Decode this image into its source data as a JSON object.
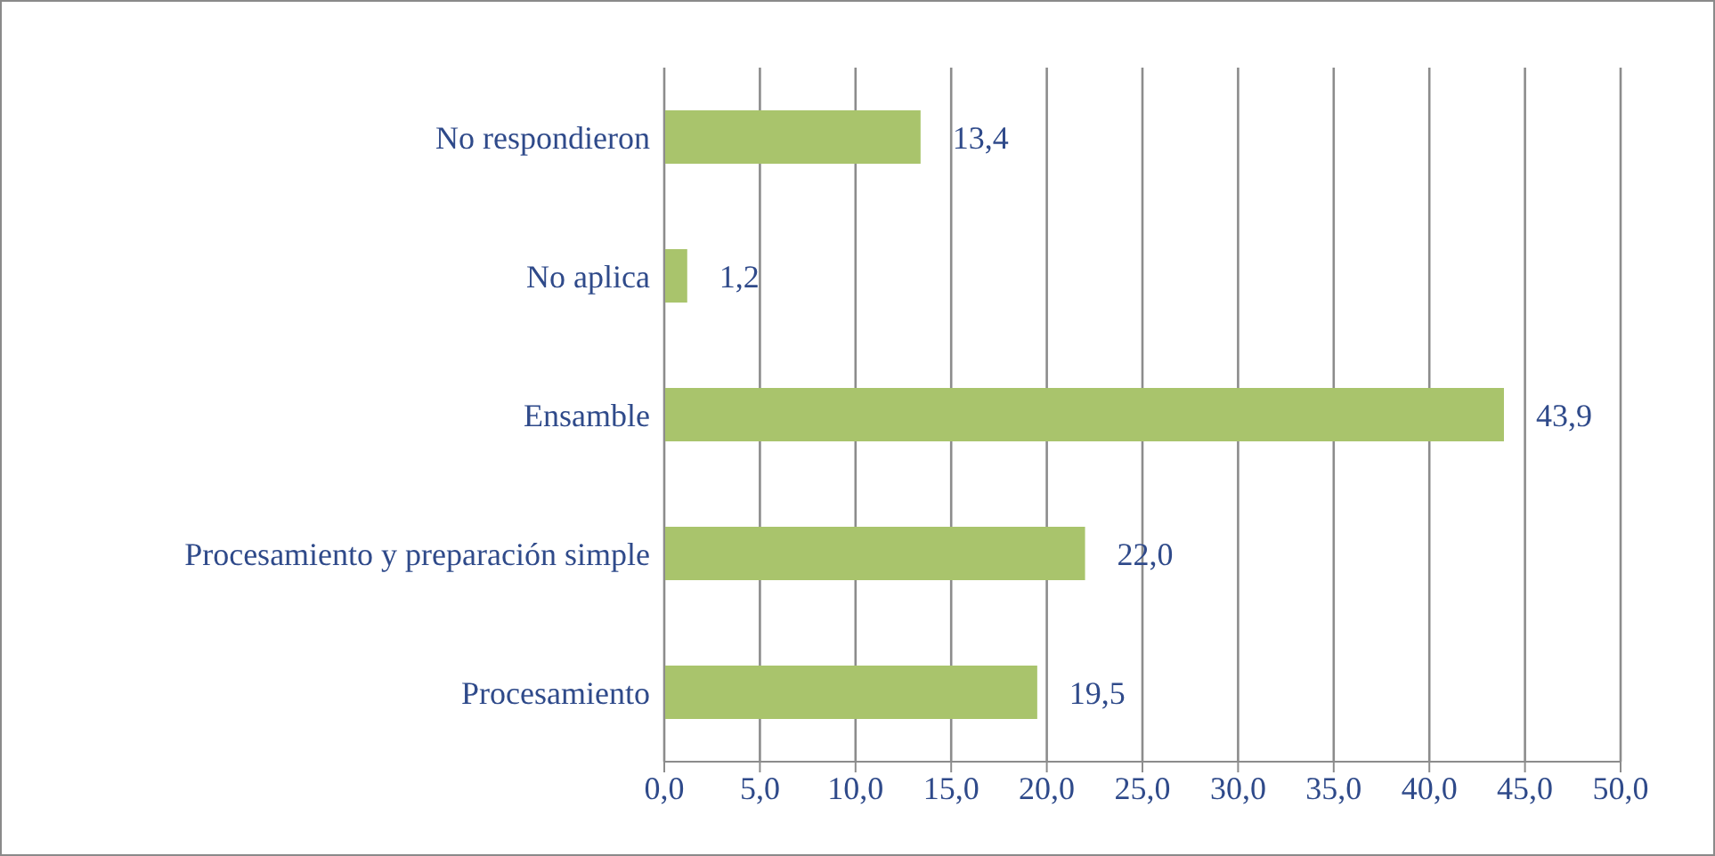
{
  "chart_data": {
    "type": "bar",
    "orientation": "horizontal",
    "categories": [
      "No respondieron",
      "No aplica",
      "Ensamble",
      "Procesamiento y preparación simple",
      "Procesamiento"
    ],
    "values": [
      13.4,
      1.2,
      43.9,
      22.0,
      19.5
    ],
    "value_labels": [
      "13,4",
      "1,2",
      "43,9",
      "22,0",
      "19,5"
    ],
    "color": "#a9c46c",
    "xlim": [
      0,
      50
    ],
    "xticks": [
      {
        "value": 0,
        "label": "0,0"
      },
      {
        "value": 5,
        "label": "5,0"
      },
      {
        "value": 10,
        "label": "10,0"
      },
      {
        "value": 15,
        "label": "15,0"
      },
      {
        "value": 20,
        "label": "20,0"
      },
      {
        "value": 25,
        "label": "25,0"
      },
      {
        "value": 30,
        "label": "30,0"
      },
      {
        "value": 35,
        "label": "35,0"
      },
      {
        "value": 40,
        "label": "40,0"
      },
      {
        "value": 45,
        "label": "45,0"
      },
      {
        "value": 50,
        "label": "50,0"
      }
    ],
    "grid": "x"
  }
}
